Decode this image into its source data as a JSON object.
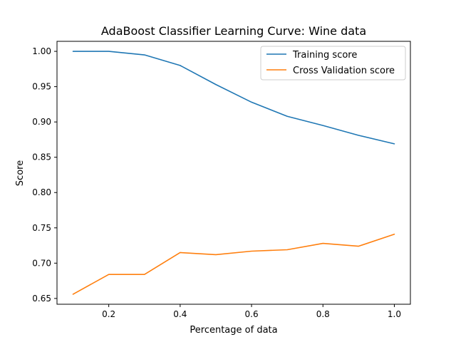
{
  "chart_data": {
    "type": "line",
    "title": "AdaBoost Classifier Learning Curve: Wine data",
    "xlabel": "Percentage of data",
    "ylabel": "Score",
    "x": [
      0.1,
      0.2,
      0.3,
      0.4,
      0.5,
      0.6,
      0.7,
      0.8,
      0.9,
      1.0
    ],
    "series": [
      {
        "name": "Training score",
        "color": "#1f77b4",
        "values": [
          1.0,
          1.0,
          0.995,
          0.98,
          0.953,
          0.928,
          0.908,
          0.895,
          0.881,
          0.869
        ]
      },
      {
        "name": "Cross Validation score",
        "color": "#ff7f0e",
        "values": [
          0.656,
          0.684,
          0.684,
          0.715,
          0.712,
          0.717,
          0.719,
          0.728,
          0.724,
          0.741
        ]
      }
    ],
    "xlim": [
      0.055,
      1.045
    ],
    "ylim": [
      0.6418,
      1.0142
    ],
    "xticks": [
      0.2,
      0.4,
      0.6,
      0.8,
      1.0
    ],
    "xtick_labels": [
      "0.2",
      "0.4",
      "0.6",
      "0.8",
      "1.0"
    ],
    "yticks": [
      0.65,
      0.7,
      0.75,
      0.8,
      0.85,
      0.9,
      0.95,
      1.0
    ],
    "ytick_labels": [
      "0.65",
      "0.70",
      "0.75",
      "0.80",
      "0.85",
      "0.90",
      "0.95",
      "1.00"
    ],
    "grid": false,
    "legend_position": "top-right"
  }
}
